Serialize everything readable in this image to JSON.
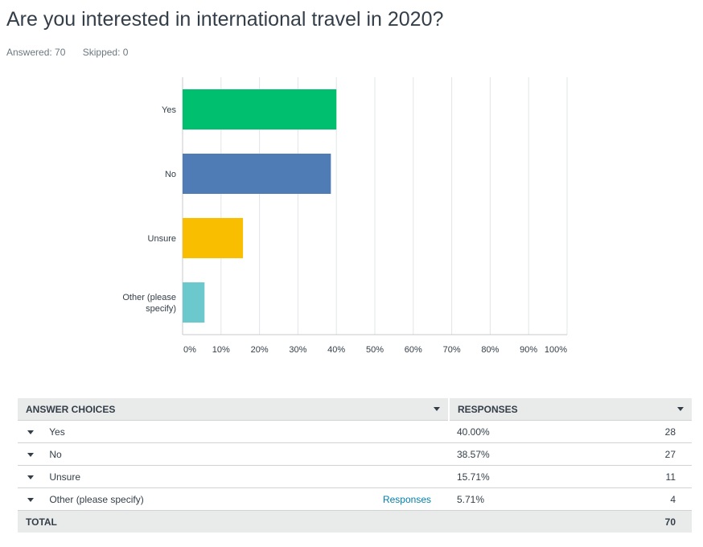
{
  "question": {
    "title": "Are you interested in international travel in 2020?",
    "answered": "Answered: 70",
    "skipped": "Skipped: 0"
  },
  "chart_data": {
    "type": "bar",
    "orientation": "horizontal",
    "categories": [
      "Yes",
      "No",
      "Unsure",
      "Other (please specify)"
    ],
    "category_lines": [
      [
        "Yes"
      ],
      [
        "No"
      ],
      [
        "Unsure"
      ],
      [
        "Other (please",
        "specify)"
      ]
    ],
    "values": [
      40.0,
      38.57,
      15.71,
      5.71
    ],
    "colors": [
      "#00bf6f",
      "#507cb6",
      "#f9be00",
      "#6bc8cd"
    ],
    "xlim": [
      0,
      100
    ],
    "ticks": [
      "0%",
      "10%",
      "20%",
      "30%",
      "40%",
      "50%",
      "60%",
      "70%",
      "80%",
      "90%",
      "100%"
    ],
    "grid": true,
    "title": "",
    "xlabel": "",
    "ylabel": ""
  },
  "table": {
    "col_choices": "ANSWER CHOICES",
    "col_responses": "RESPONSES",
    "rows": [
      {
        "choice": "Yes",
        "pct": "40.00%",
        "count": "28",
        "link": ""
      },
      {
        "choice": "No",
        "pct": "38.57%",
        "count": "27",
        "link": ""
      },
      {
        "choice": "Unsure",
        "pct": "15.71%",
        "count": "11",
        "link": ""
      },
      {
        "choice": "Other (please specify)",
        "pct": "5.71%",
        "count": "4",
        "link": "Responses"
      }
    ],
    "total_label": "TOTAL",
    "total_value": "70"
  }
}
